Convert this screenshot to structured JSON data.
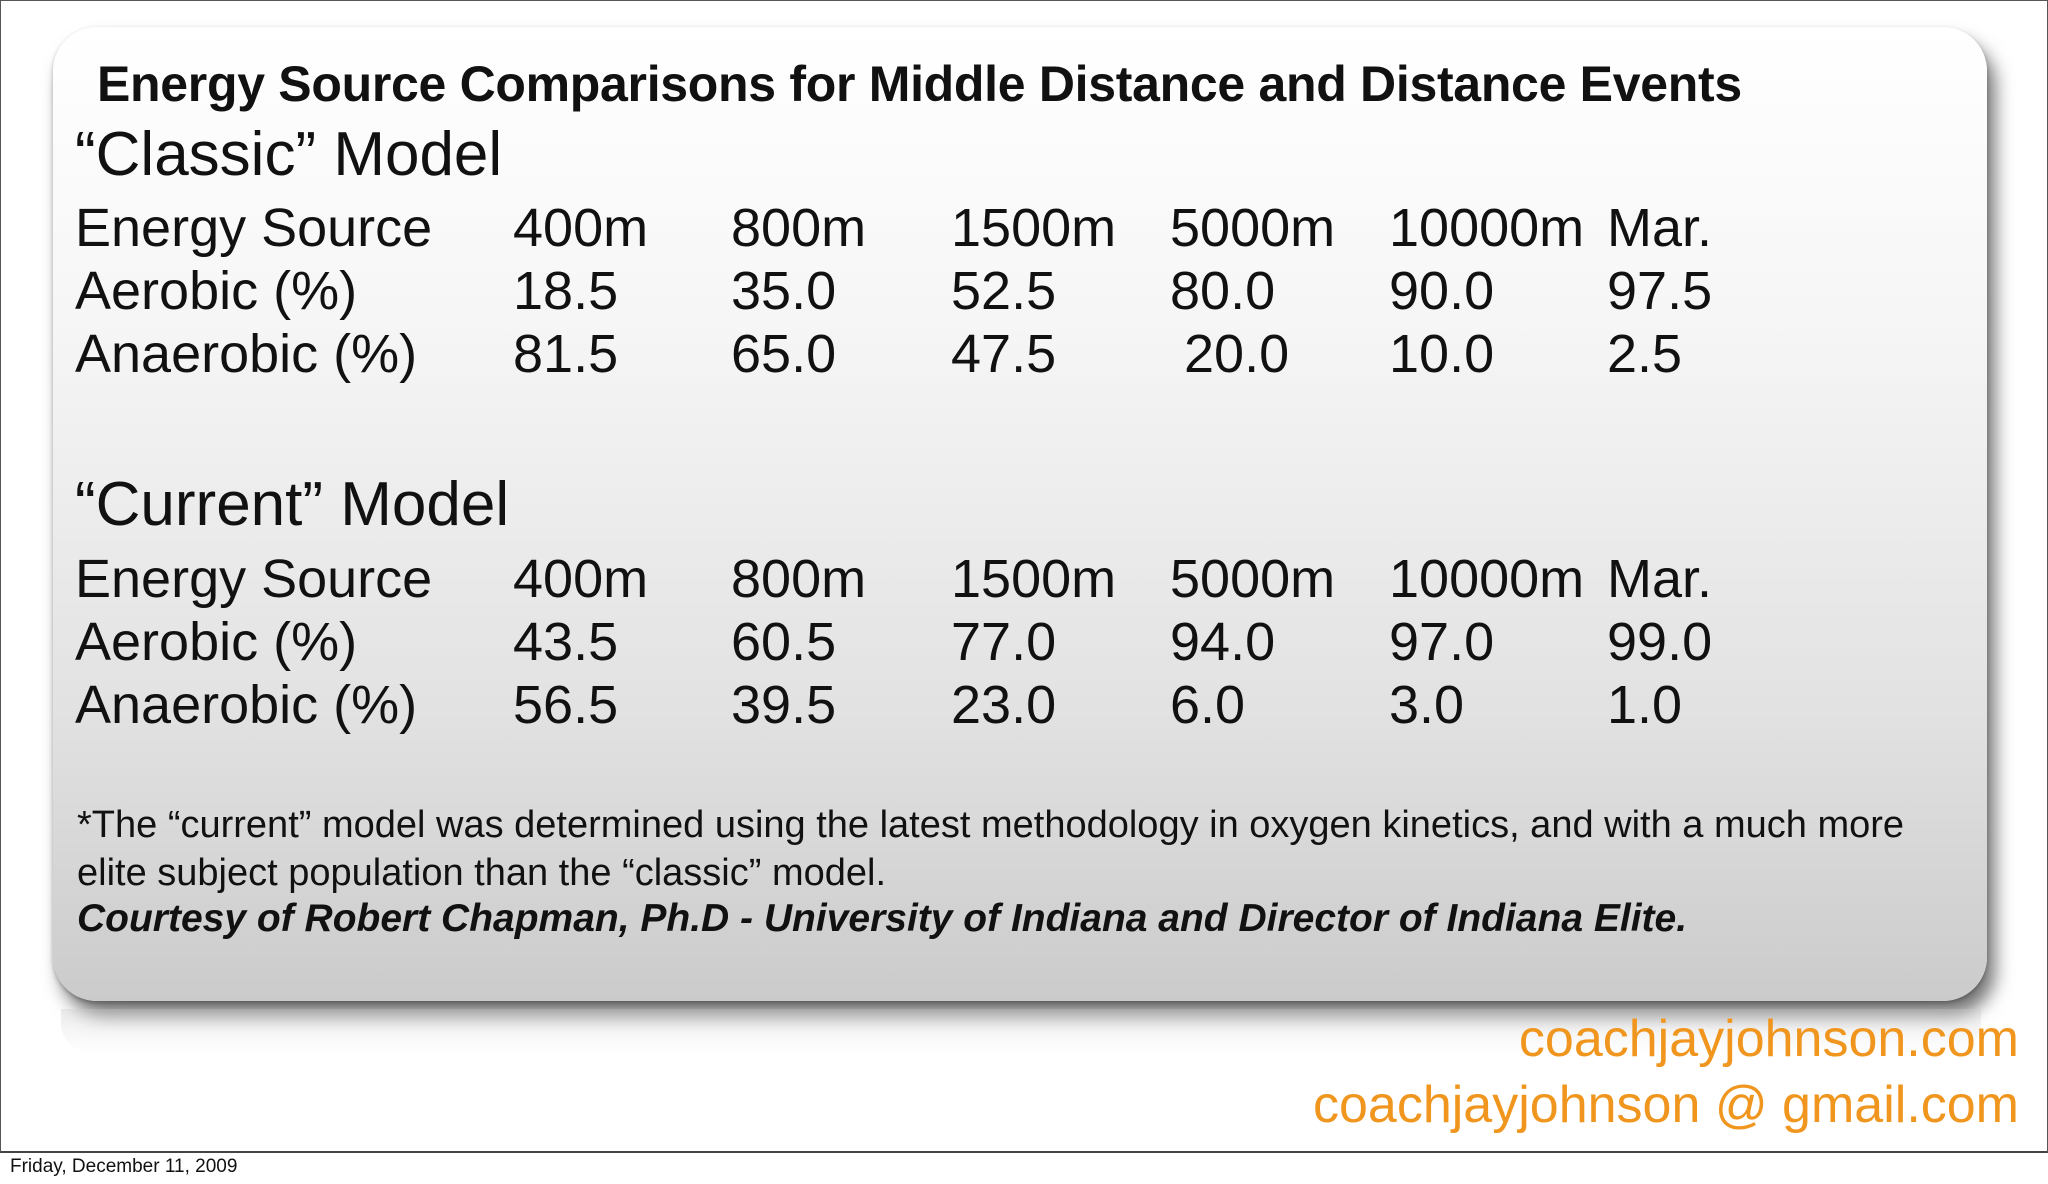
{
  "title": "Energy Source Comparisons for Middle Distance and Distance Events",
  "columns": [
    "Energy Source",
    "400m",
    "800m",
    "1500m",
    "5000m",
    "10000m",
    "Mar."
  ],
  "classic": {
    "heading": "“Classic” Model",
    "aerobic": {
      "label": "Aerobic (%)",
      "values": [
        "18.5",
        "35.0",
        "52.5",
        "80.0",
        "90.0",
        "97.5"
      ]
    },
    "anaerobic": {
      "label": "Anaerobic (%)",
      "values": [
        "81.5",
        "65.0",
        "47.5",
        " 20.0",
        "10.0",
        "2.5"
      ]
    }
  },
  "current": {
    "heading": "“Current” Model",
    "aerobic": {
      "label": "Aerobic (%)",
      "values": [
        "43.5",
        "60.5",
        "77.0",
        "94.0",
        "97.0",
        "99.0"
      ]
    },
    "anaerobic": {
      "label": "Anaerobic (%)",
      "values": [
        "56.5",
        "39.5",
        "23.0",
        "6.0",
        "3.0",
        "1.0"
      ]
    }
  },
  "footnote": "*The “current” model was determined using the latest methodology in oxygen kinetics, and with a much more elite subject population than the “classic” model.",
  "courtesy": "Courtesy of Robert Chapman, Ph.D - University of Indiana and Director of Indiana Elite.",
  "website": "coachjayjohnson.com",
  "email": "coachjayjohnson @ gmail.com",
  "date": "Friday, December 11, 2009",
  "colors": {
    "accent": "#f0961e",
    "text": "#111111"
  }
}
